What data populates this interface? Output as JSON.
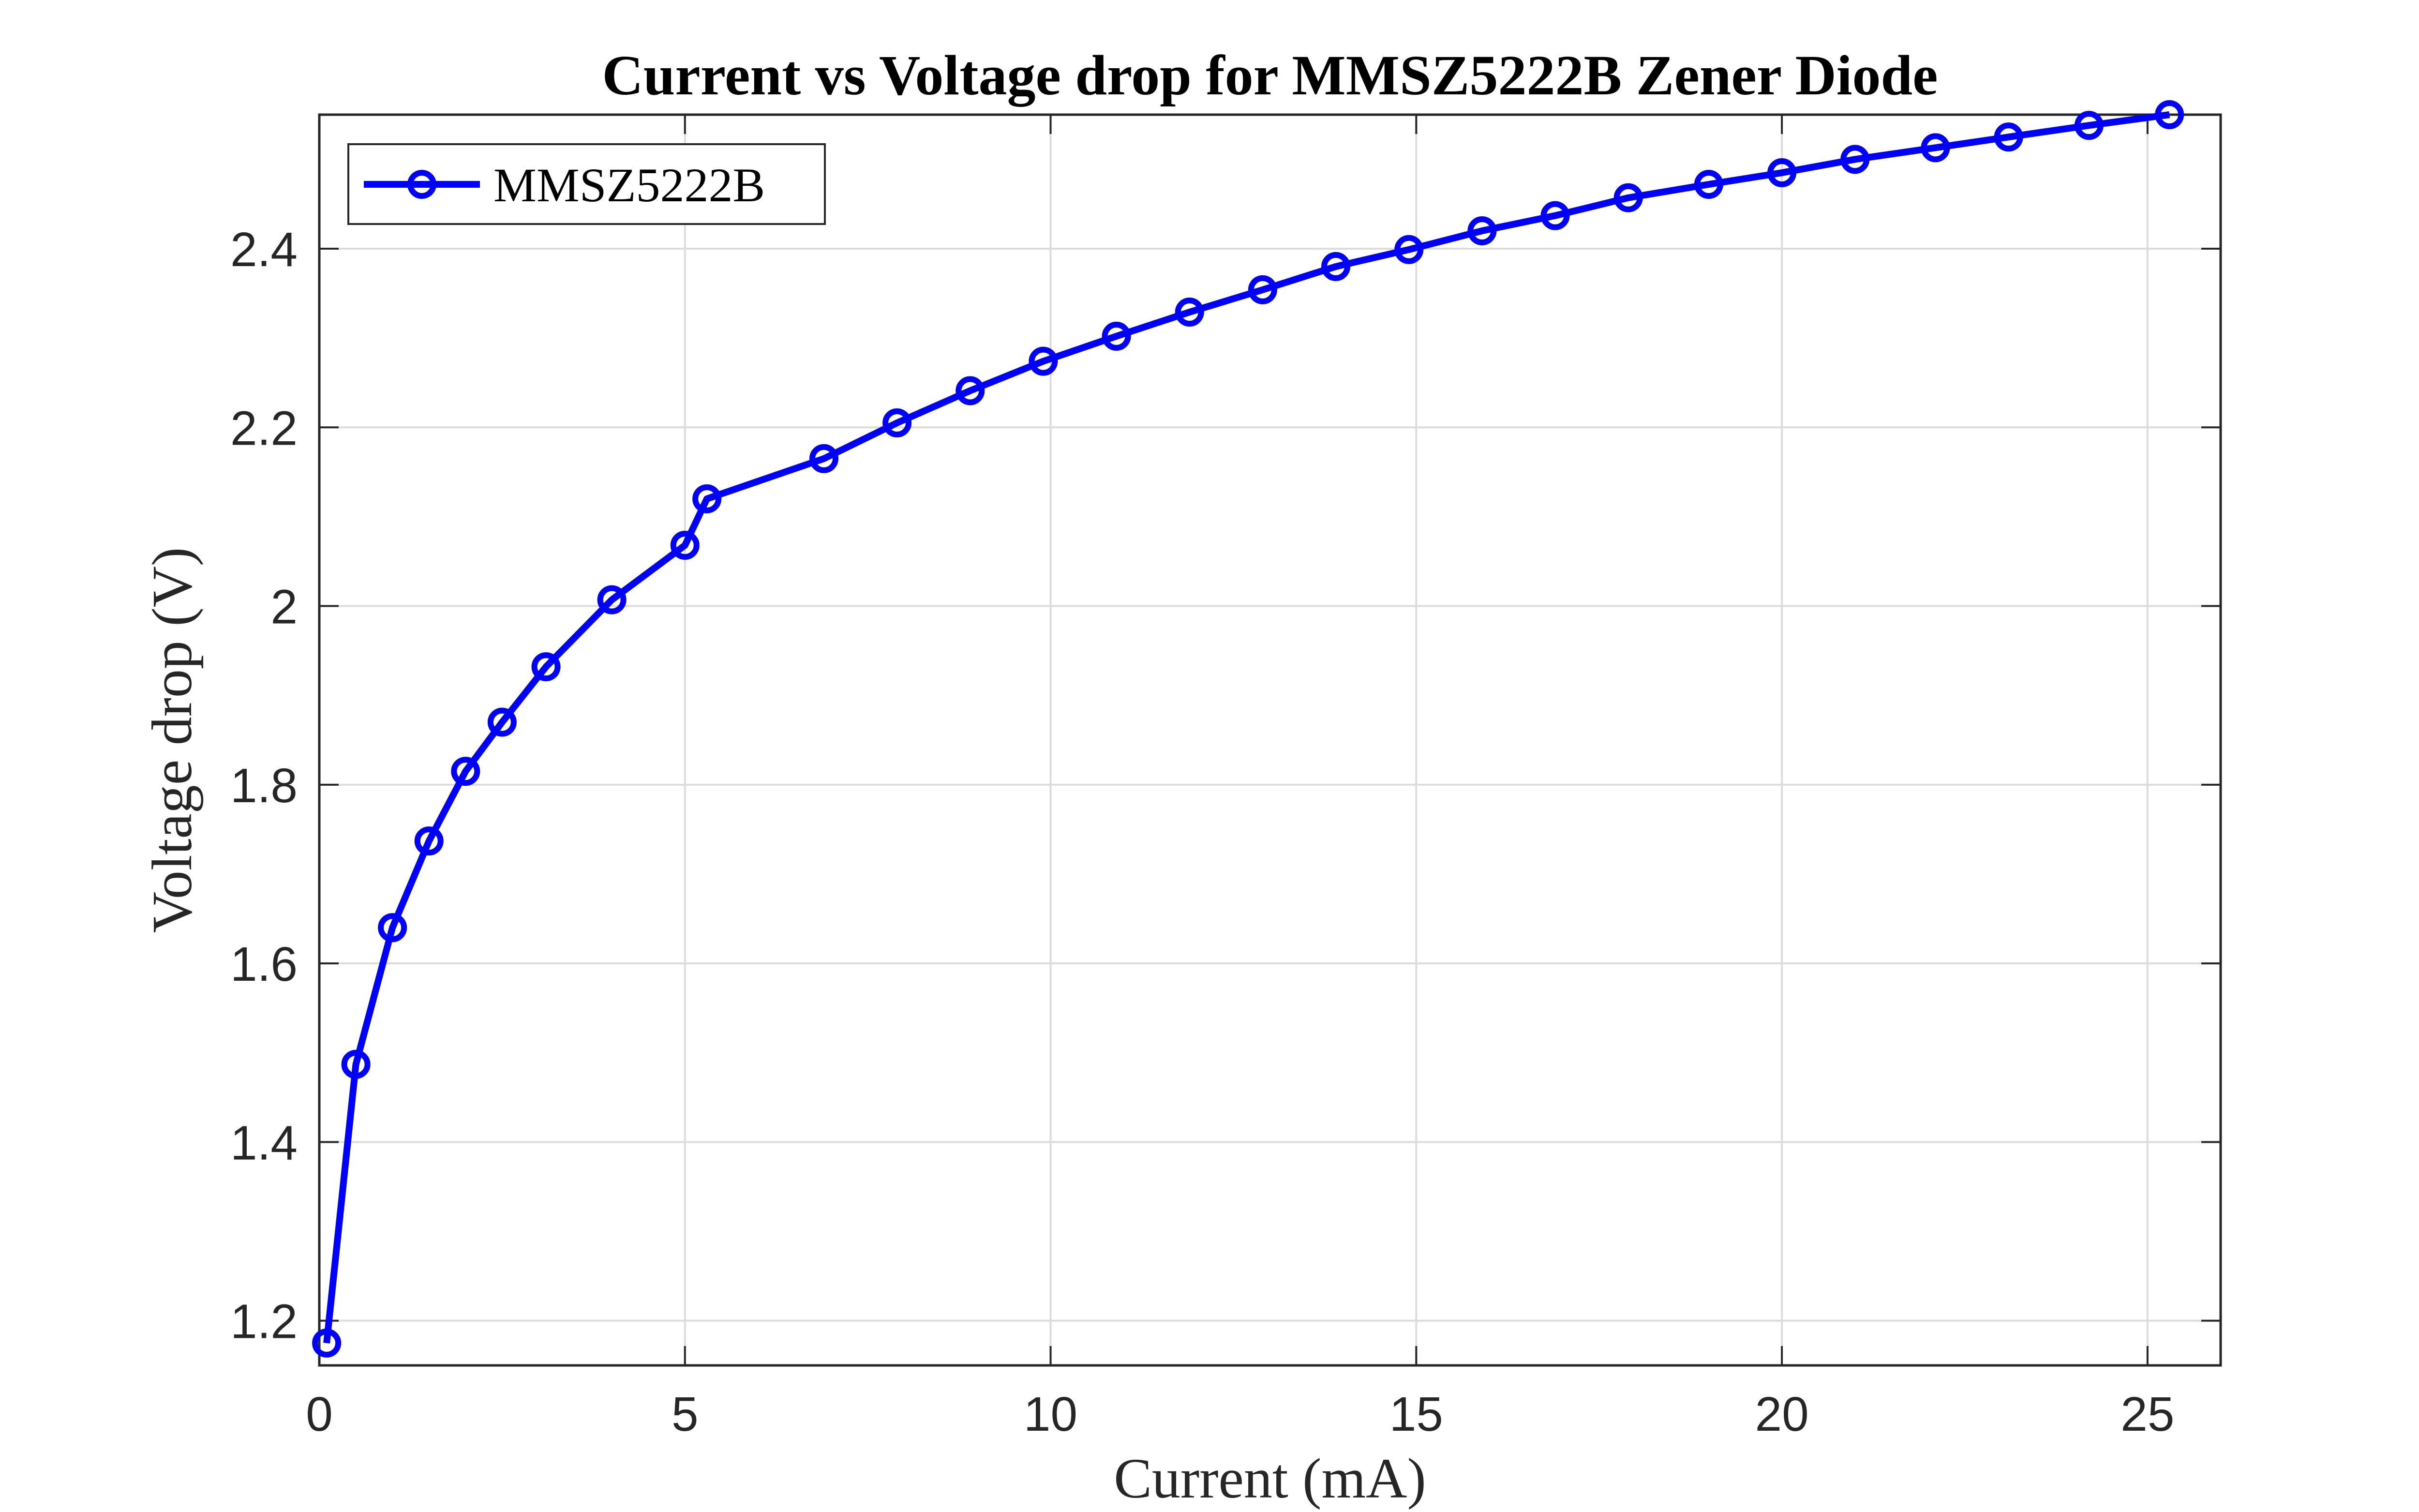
{
  "chart_data": {
    "type": "line",
    "title": "Current vs Voltage drop for MMSZ5222B Zener Diode",
    "xlabel": "Current (mA)",
    "ylabel": "Voltage drop (V)",
    "xlim": [
      0,
      26
    ],
    "ylim": [
      1.15,
      2.55
    ],
    "xticks": [
      0,
      5,
      10,
      15,
      20,
      25
    ],
    "yticks": [
      1.2,
      1.4,
      1.6,
      1.8,
      2.0,
      2.2,
      2.4
    ],
    "xtick_labels": [
      "0",
      "5",
      "10",
      "15",
      "20",
      "25"
    ],
    "ytick_labels": [
      "1.2",
      "1.4",
      "1.6",
      "1.8",
      "2",
      "2.2",
      "2.4"
    ],
    "grid": true,
    "legend_position": "top-left",
    "series": [
      {
        "name": "MMSZ5222B",
        "color": "#0000ff",
        "marker": "circle",
        "x": [
          0.1,
          0.5,
          1.0,
          1.5,
          2.0,
          2.5,
          3.1,
          4.0,
          5.0,
          5.3,
          6.9,
          7.9,
          8.9,
          9.9,
          10.9,
          11.9,
          12.9,
          13.9,
          14.9,
          15.9,
          16.9,
          17.9,
          19.0,
          20.0,
          21.0,
          22.1,
          23.1,
          24.2,
          25.3
        ],
        "y": [
          1.175,
          1.487,
          1.64,
          1.737,
          1.815,
          1.87,
          1.932,
          2.007,
          2.068,
          2.12,
          2.165,
          2.205,
          2.241,
          2.274,
          2.302,
          2.329,
          2.354,
          2.38,
          2.399,
          2.42,
          2.437,
          2.457,
          2.472,
          2.485,
          2.5,
          2.513,
          2.525,
          2.538,
          2.55
        ]
      }
    ]
  }
}
